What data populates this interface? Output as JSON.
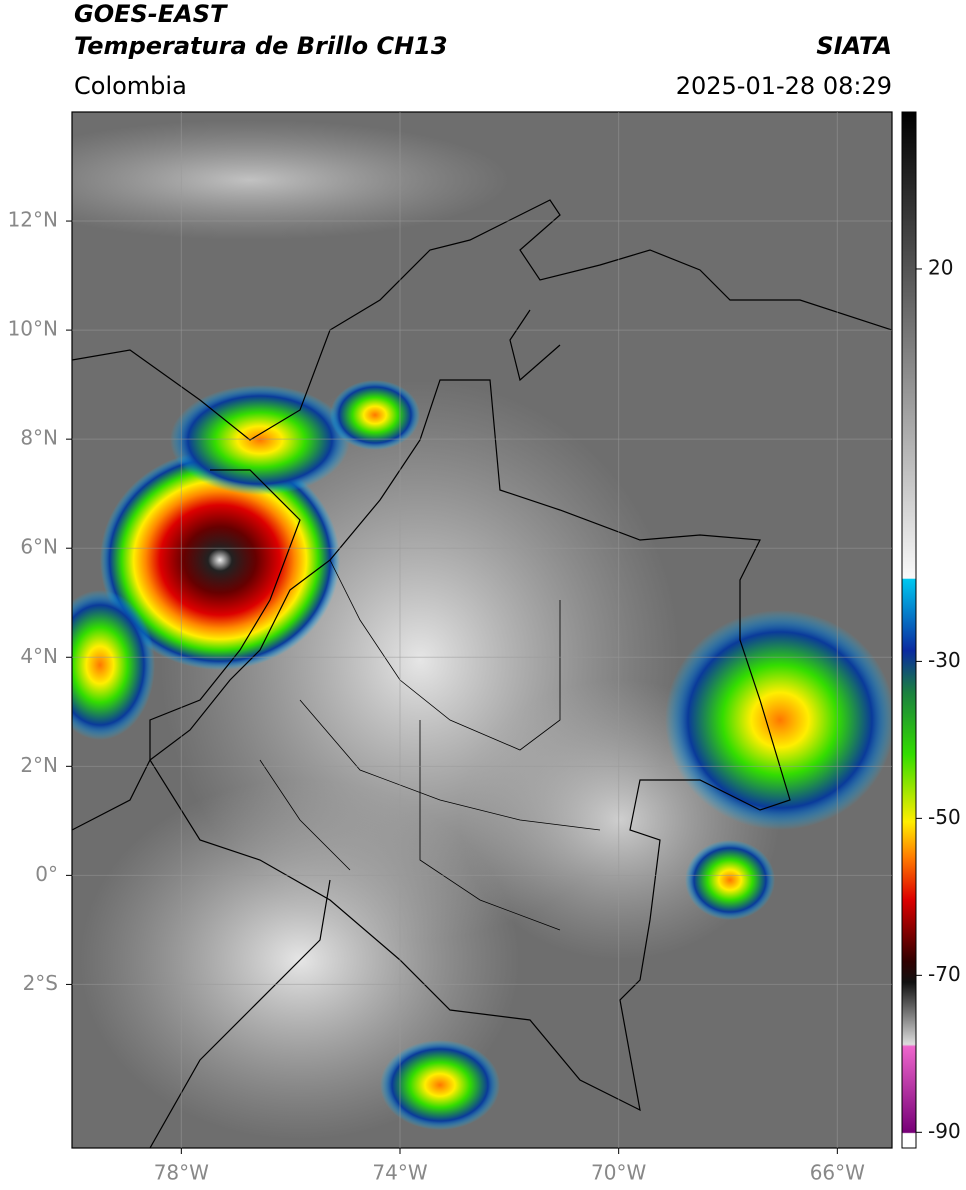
{
  "chart_data": {
    "type": "map",
    "title": "GOES-EAST",
    "subtitle": "Temperatura de Brillo CH13",
    "region": "Colombia",
    "source": "SIATA",
    "timestamp": "2025-01-28 08:29",
    "xlim": [
      -80,
      -65
    ],
    "ylim": [
      -5,
      14
    ],
    "xticks": [
      {
        "value": -78,
        "label": "78°W"
      },
      {
        "value": -74,
        "label": "74°W"
      },
      {
        "value": -70,
        "label": "70°W"
      },
      {
        "value": -66,
        "label": "66°W"
      }
    ],
    "yticks": [
      {
        "value": 12,
        "label": "12°N"
      },
      {
        "value": 10,
        "label": "10°N"
      },
      {
        "value": 8,
        "label": "8°N"
      },
      {
        "value": 6,
        "label": "6°N"
      },
      {
        "value": 4,
        "label": "4°N"
      },
      {
        "value": 2,
        "label": "2°N"
      },
      {
        "value": 0,
        "label": "0°"
      },
      {
        "value": -2,
        "label": "2°S"
      }
    ],
    "colorbar": {
      "lim": [
        -92,
        40
      ],
      "ticks": [
        20,
        -30,
        -50,
        -70,
        -90
      ]
    },
    "grid": true
  }
}
